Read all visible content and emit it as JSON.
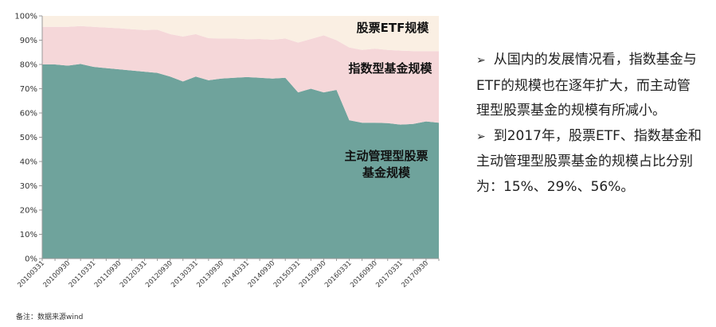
{
  "chart_data": {
    "type": "area",
    "stacked": true,
    "x": [
      "20100331",
      "20100630",
      "20100930",
      "20101231",
      "20110331",
      "20110630",
      "20110930",
      "20111231",
      "20120331",
      "20120630",
      "20120930",
      "20121231",
      "20130331",
      "20130630",
      "20130930",
      "20131231",
      "20140331",
      "20140630",
      "20140930",
      "20141231",
      "20150331",
      "20150630",
      "20150930",
      "20151231",
      "20160331",
      "20160630",
      "20160930",
      "20161231",
      "20170331",
      "20170630",
      "20170930",
      "20171231"
    ],
    "xtick_labels": [
      "20100331",
      "20100930",
      "20110331",
      "20110930",
      "20120331",
      "20120930",
      "20130331",
      "20130930",
      "20140331",
      "20140930",
      "20150331",
      "20150930",
      "20160331",
      "20160930",
      "20170331",
      "20170930"
    ],
    "yticks": [
      "0%",
      "10%",
      "20%",
      "30%",
      "40%",
      "50%",
      "60%",
      "70%",
      "80%",
      "90%",
      "100%"
    ],
    "ylim": [
      0,
      100
    ],
    "grid": false,
    "series": [
      {
        "name": "主动管理型股票基金规模",
        "values": [
          80,
          80,
          79.5,
          80.2,
          79,
          78.5,
          78,
          77.5,
          77,
          76.5,
          75,
          73,
          75,
          73.5,
          74.2,
          74.5,
          74.8,
          74.5,
          74.2,
          74.5,
          68.5,
          70,
          68.5,
          69.5,
          57,
          56,
          56,
          55.8,
          55.2,
          55.5,
          56.5,
          56
        ]
      },
      {
        "name": "指数型基金规模",
        "values": [
          15.5,
          15.5,
          16,
          15.6,
          16.5,
          16.7,
          16.9,
          17,
          17.2,
          17.8,
          17.5,
          18.5,
          17.5,
          17.3,
          16.5,
          16.2,
          15.6,
          16,
          16,
          16.2,
          20.5,
          20.5,
          23.5,
          20.5,
          30,
          30,
          30.5,
          30.2,
          30.5,
          30,
          29,
          29.5
        ]
      },
      {
        "name": "股票ETF规模",
        "values": [
          4.5,
          4.5,
          4.5,
          4.2,
          4.5,
          4.8,
          5.1,
          5.5,
          5.8,
          5.7,
          7.5,
          8.5,
          7.5,
          9.2,
          9.3,
          9.3,
          9.6,
          9.5,
          9.8,
          9.3,
          11,
          9.5,
          8,
          10,
          13,
          14,
          13.5,
          14,
          14.3,
          14.5,
          14.5,
          14.5
        ]
      }
    ],
    "colors": [
      "#6fa39c",
      "#f5d7d9",
      "#faefe3"
    ],
    "series_labels": [
      {
        "lines": [
          "股票ETF规模"
        ]
      },
      {
        "lines": [
          "指数型基金规模"
        ]
      },
      {
        "lines": [
          "主动管理型股票",
          "基金规模"
        ]
      }
    ]
  },
  "footnote": "备注：数据来源wind",
  "bullets": [
    {
      "marker": "➢",
      "text": "从国内的发展情况看，指数基金与ETF的规模也在逐年扩大，而主动管理型股票基金的规模有所减小。"
    },
    {
      "marker": "➢",
      "text": "到2017年，股票ETF、指数基金和主动管理型股票基金的规模占比分别为：15%、29%、56%。"
    }
  ]
}
